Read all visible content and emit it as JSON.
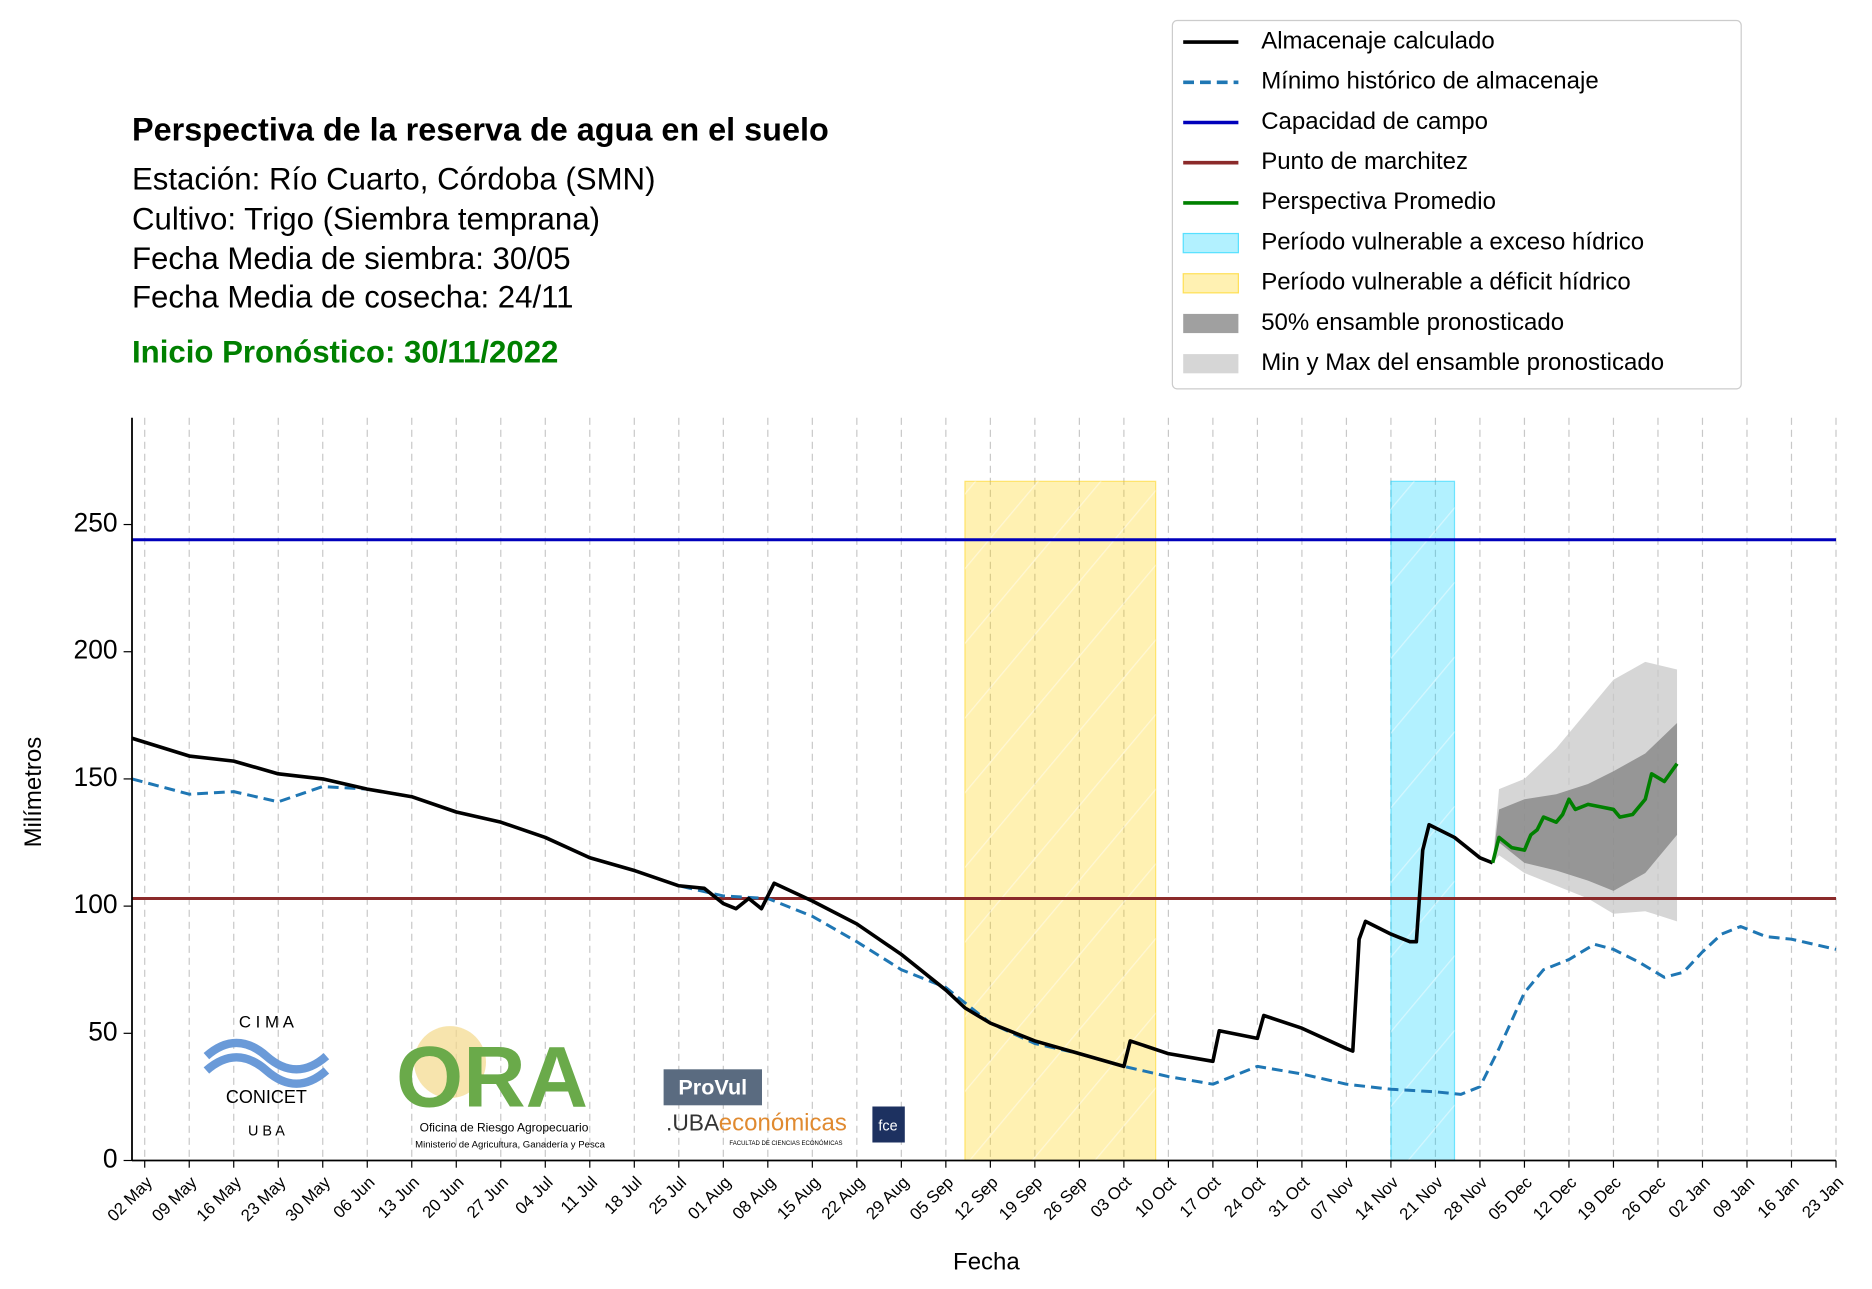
{
  "chart_data": {
    "type": "line",
    "title": "Perspectiva de la reserva de agua en el suelo",
    "subtitle": [
      "Estación: Río Cuarto, Córdoba (SMN)",
      "Cultivo: Trigo (Siembra temprana)",
      "Fecha Media de siembra: 30/05",
      "Fecha Media de cosecha: 24/11"
    ],
    "forecast_start": "Inicio Pronóstico: 30/11/2022",
    "x_label": "Fecha",
    "y_label": "Milímetros",
    "xlim": [
      "30 Apr",
      "23 Jan"
    ],
    "xticks": [
      "02 May",
      "09 May",
      "16 May",
      "23 May",
      "30 May",
      "06 Jun",
      "13 Jun",
      "20 Jun",
      "27 Jun",
      "04 Jul",
      "11 Jul",
      "18 Jul",
      "25 Jul",
      "01 Aug",
      "08 Aug",
      "15 Aug",
      "22 Aug",
      "29 Aug",
      "05 Sep",
      "12 Sep",
      "19 Sep",
      "26 Sep",
      "03 Oct",
      "10 Oct",
      "17 Oct",
      "24 Oct",
      "31 Oct",
      "07 Nov",
      "14 Nov",
      "21 Nov",
      "28 Nov",
      "05 Dec",
      "12 Dec",
      "19 Dec",
      "26 Dec",
      "02 Jan",
      "09 Jan",
      "16 Jan",
      "23 Jan"
    ],
    "ylim": [
      0,
      292
    ],
    "yticks": [
      0,
      50,
      100,
      150,
      200,
      250
    ],
    "grid": true,
    "legend": "upper right",
    "series": [
      {
        "name": "Almacenaje calculado",
        "color": "#000000",
        "style": "solid",
        "x": [
          "30 Apr",
          "09 May",
          "16 May",
          "23 May",
          "30 May",
          "06 Jun",
          "13 Jun",
          "20 Jun",
          "27 Jun",
          "04 Jul",
          "11 Jul",
          "18 Jul",
          "25 Jul",
          "29 Jul",
          "01 Aug",
          "03 Aug",
          "05 Aug",
          "07 Aug",
          "09 Aug",
          "15 Aug",
          "22 Aug",
          "29 Aug",
          "05 Sep",
          "08 Sep",
          "12 Sep",
          "19 Sep",
          "26 Sep",
          "03 Oct",
          "04 Oct",
          "10 Oct",
          "17 Oct",
          "18 Oct",
          "24 Oct",
          "25 Oct",
          "31 Oct",
          "07 Nov",
          "08 Nov",
          "09 Nov",
          "10 Nov",
          "14 Nov",
          "17 Nov",
          "18 Nov",
          "19 Nov",
          "20 Nov",
          "24 Nov",
          "28 Nov",
          "30 Nov"
        ],
        "values": [
          166,
          159,
          157,
          152,
          150,
          146,
          143,
          137,
          133,
          127,
          119,
          114,
          108,
          107,
          101,
          99,
          103,
          99,
          109,
          102,
          93,
          81,
          67,
          60,
          54,
          47,
          42,
          37,
          47,
          42,
          39,
          51,
          48,
          57,
          52,
          44,
          43,
          87,
          94,
          89,
          86,
          86,
          122,
          132,
          127,
          119,
          117
        ]
      },
      {
        "name": "Mínimo histórico de almacenaje",
        "color": "#1f77b4",
        "style": "dashed",
        "x": [
          "30 Apr",
          "09 May",
          "16 May",
          "23 May",
          "30 May",
          "06 Jun",
          "13 Jun",
          "20 Jun",
          "27 Jun",
          "04 Jul",
          "11 Jul",
          "18 Jul",
          "25 Jul",
          "01 Aug",
          "08 Aug",
          "15 Aug",
          "22 Aug",
          "29 Aug",
          "05 Sep",
          "12 Sep",
          "19 Sep",
          "26 Sep",
          "03 Oct",
          "10 Oct",
          "17 Oct",
          "24 Oct",
          "31 Oct",
          "07 Nov",
          "14 Nov",
          "21 Nov",
          "25 Nov",
          "28 Nov",
          "01 Dec",
          "05 Dec",
          "08 Dec",
          "12 Dec",
          "16 Dec",
          "19 Dec",
          "23 Dec",
          "27 Dec",
          "30 Dec",
          "02 Jan",
          "05 Jan",
          "08 Jan",
          "12 Jan",
          "16 Jan",
          "23 Jan"
        ],
        "values": [
          150,
          144,
          145,
          141,
          147,
          146,
          143,
          137,
          133,
          127,
          119,
          114,
          108,
          104,
          103,
          96,
          86,
          75,
          68,
          54,
          46,
          42,
          37,
          33,
          30,
          37,
          34,
          30,
          28,
          27,
          26,
          29,
          44,
          66,
          75,
          79,
          85,
          83,
          78,
          72,
          74,
          82,
          89,
          92,
          88,
          87,
          83
        ]
      },
      {
        "name": "Capacidad de campo",
        "color": "#0000bb",
        "style": "hline",
        "value": 244
      },
      {
        "name": "Punto de marchitez",
        "color": "#8b2a2a",
        "style": "hline",
        "value": 103
      },
      {
        "name": "Perspectiva Promedio",
        "color": "#008000",
        "style": "solid",
        "x": [
          "30 Nov",
          "01 Dec",
          "03 Dec",
          "05 Dec",
          "06 Dec",
          "07 Dec",
          "08 Dec",
          "10 Dec",
          "11 Dec",
          "12 Dec",
          "13 Dec",
          "15 Dec",
          "17 Dec",
          "19 Dec",
          "20 Dec",
          "22 Dec",
          "24 Dec",
          "25 Dec",
          "27 Dec",
          "29 Dec"
        ],
        "values": [
          117,
          127,
          123,
          122,
          128,
          130,
          135,
          133,
          136,
          142,
          138,
          140,
          139,
          138,
          135,
          136,
          142,
          152,
          149,
          156
        ]
      },
      {
        "name": "Período vulnerable a exceso hídrico",
        "color": "#00d0ff",
        "style": "span",
        "x": [
          "14 Nov",
          "24 Nov"
        ],
        "top": 267
      },
      {
        "name": "Período vulnerable a déficit hídrico",
        "color": "#ffd000",
        "style": "span",
        "x": [
          "08 Sep",
          "08 Oct"
        ],
        "top": 267
      },
      {
        "name": "50% ensamble pronosticado",
        "color": "#808080",
        "style": "band",
        "x": [
          "30 Nov",
          "01 Dec",
          "05 Dec",
          "10 Dec",
          "15 Dec",
          "19 Dec",
          "24 Dec",
          "29 Dec"
        ],
        "lower": [
          117,
          125,
          117,
          114,
          110,
          106,
          113,
          128
        ],
        "upper": [
          117,
          138,
          142,
          144,
          148,
          153,
          160,
          172
        ]
      },
      {
        "name": "Min y Max del ensamble pronosticado",
        "color": "#c8c8c8",
        "style": "band",
        "x": [
          "30 Nov",
          "01 Dec",
          "05 Dec",
          "10 Dec",
          "15 Dec",
          "19 Dec",
          "24 Dec",
          "29 Dec"
        ],
        "lower": [
          117,
          120,
          113,
          108,
          103,
          97,
          98,
          94
        ],
        "upper": [
          117,
          146,
          150,
          162,
          177,
          189,
          196,
          193
        ]
      }
    ]
  },
  "logos": {
    "cima": [
      "C I M A",
      "CONICET",
      "U B A"
    ],
    "ora": "ORA",
    "ora_sub": [
      "Oficina de Riesgo Agropecuario",
      "Ministerio de Agricultura, Ganadería y Pesca"
    ],
    "provul": "ProVul",
    "uba": ".UBA",
    "economicas": "económicas",
    "fce_sub": "FACULTAD DE CIENCIAS ECONÓMICAS",
    "fce": "fce"
  }
}
